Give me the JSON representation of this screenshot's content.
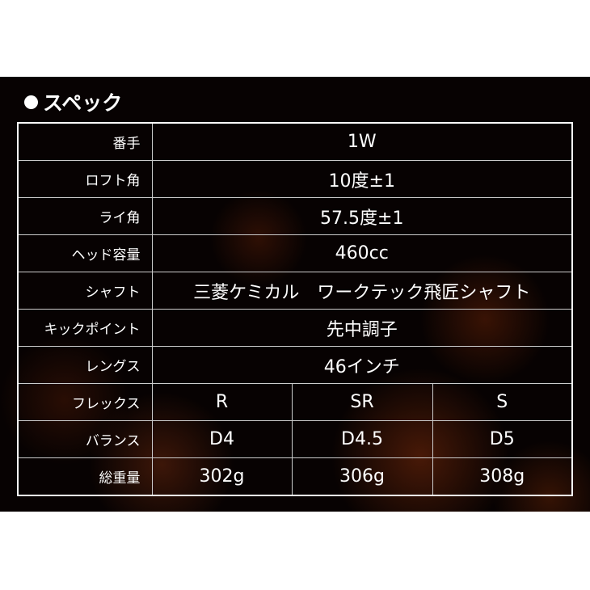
{
  "title": "スペック",
  "rows": [
    {
      "label": "番手",
      "value": "1W"
    },
    {
      "label": "ロフト角",
      "value": "10度±1"
    },
    {
      "label": "ライ角",
      "value": "57.5度±1"
    },
    {
      "label": "ヘッド容量",
      "value": "460cc"
    },
    {
      "label": "シャフト",
      "value": "三菱ケミカル　ワークテック飛匠シャフト"
    },
    {
      "label": "キックポイント",
      "value": "先中調子"
    },
    {
      "label": "レングス",
      "value": "46インチ"
    }
  ],
  "flex": {
    "label": "フレックス",
    "values": [
      "R",
      "SR",
      "S"
    ]
  },
  "balance": {
    "label": "バランス",
    "values": [
      "D4",
      "D4.5",
      "D5"
    ]
  },
  "weight": {
    "label": "総重量",
    "values": [
      "302g",
      "306g",
      "308g"
    ]
  }
}
